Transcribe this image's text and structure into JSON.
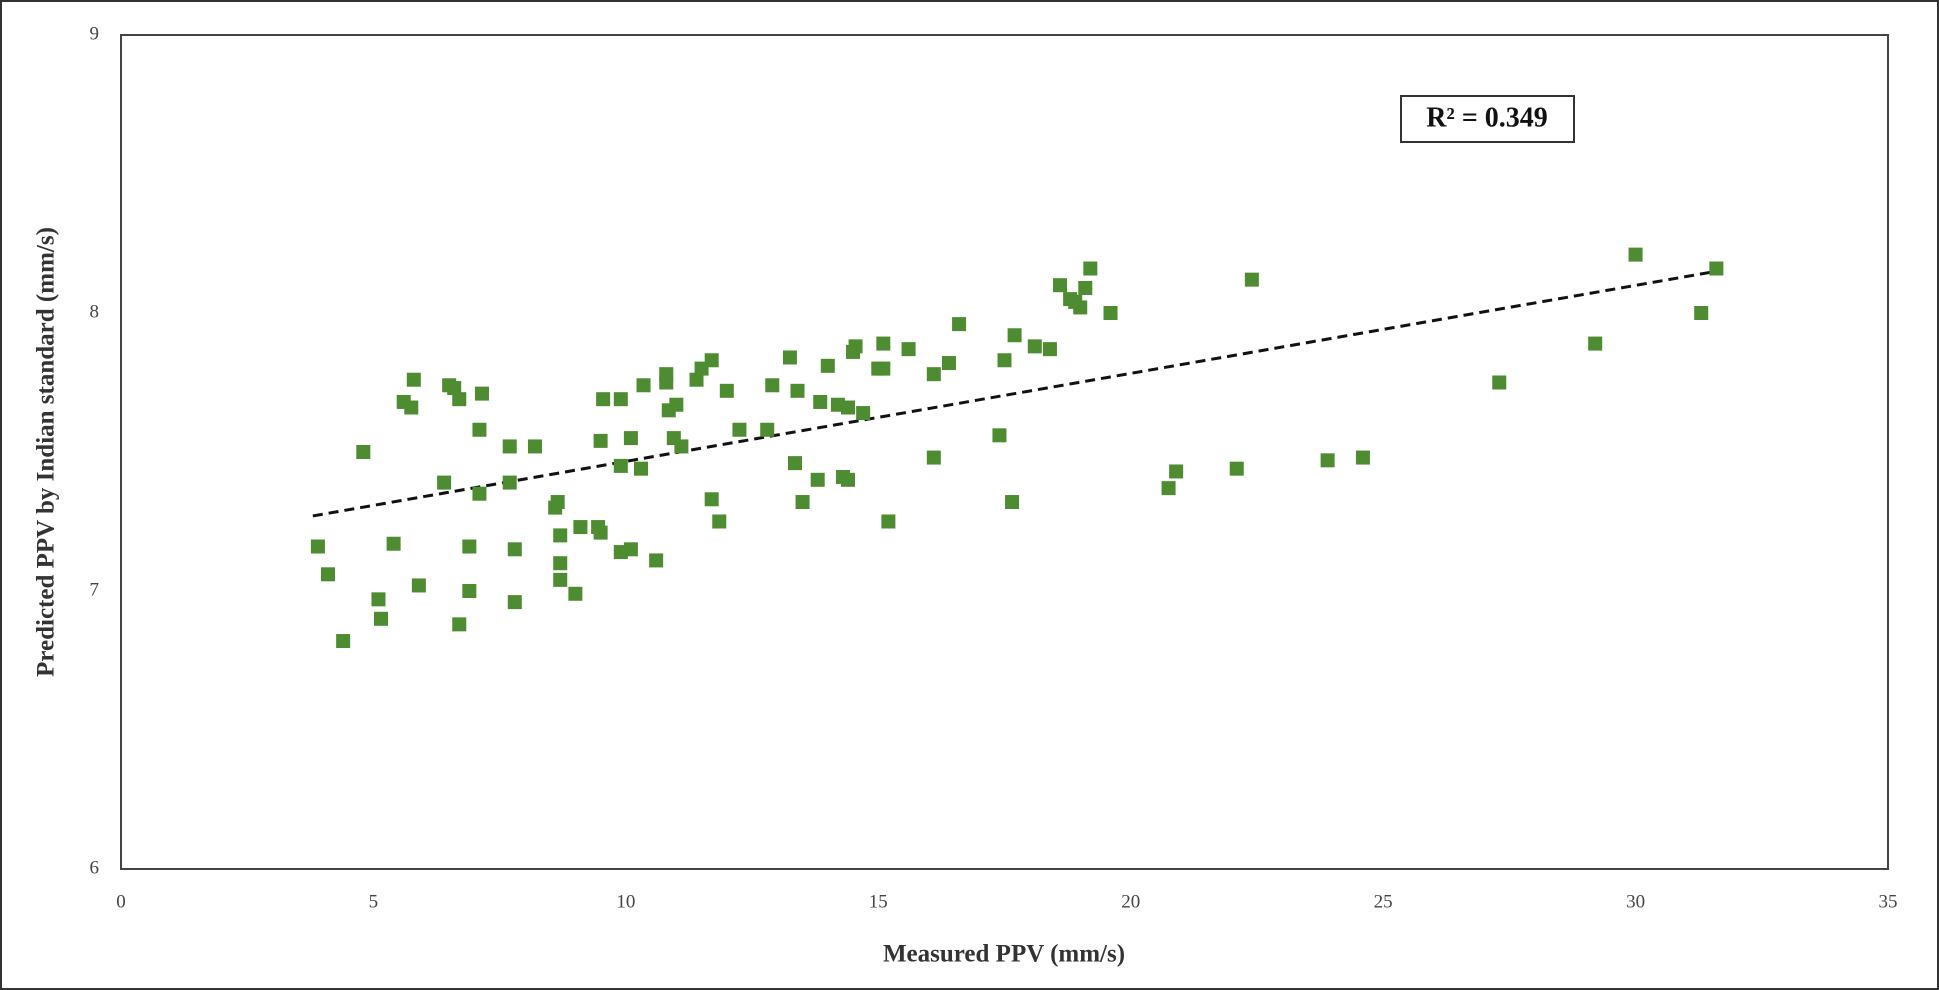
{
  "chart_data": {
    "type": "scatter",
    "x_label": "Measured PPV (mm/s)",
    "y_label": "Predicted PPV by Indian standard (mm/s)",
    "annotation": "R² = 0.349",
    "xlim": [
      0,
      35
    ],
    "xticks": [
      0,
      5,
      10,
      15,
      20,
      25,
      30,
      35
    ],
    "ylim": [
      6,
      9
    ],
    "yticks": [
      6,
      7,
      8,
      9
    ],
    "grid": false,
    "color": "#4e8c32",
    "x": [
      3.9,
      4.1,
      4.4,
      4.8,
      5.1,
      5.15,
      5.4,
      5.6,
      5.75,
      5.8,
      5.9,
      6.4,
      6.5,
      6.6,
      6.7,
      6.7,
      6.9,
      6.9,
      7.1,
      7.1,
      7.15,
      7.7,
      7.7,
      7.8,
      7.8,
      8.2,
      8.6,
      8.65,
      8.7,
      8.7,
      8.7,
      9.0,
      9.1,
      9.45,
      9.5,
      9.5,
      9.55,
      9.9,
      9.9,
      9.9,
      10.1,
      10.1,
      10.3,
      10.35,
      10.6,
      10.8,
      10.8,
      10.85,
      10.95,
      11.0,
      11.1,
      11.4,
      11.5,
      11.7,
      11.7,
      11.85,
      12.0,
      12.25,
      12.8,
      12.9,
      13.25,
      13.35,
      13.4,
      13.5,
      13.8,
      13.85,
      14.0,
      14.2,
      14.3,
      14.4,
      14.4,
      14.5,
      14.55,
      14.7,
      15.0,
      15.1,
      15.1,
      15.2,
      15.6,
      16.1,
      16.1,
      16.4,
      16.6,
      17.4,
      17.5,
      17.65,
      17.7,
      18.1,
      18.4,
      18.6,
      18.8,
      18.9,
      19.0,
      19.1,
      19.2,
      19.6,
      20.75,
      20.9,
      22.1,
      22.4,
      23.9,
      24.6,
      27.3,
      29.2,
      30.0,
      31.3,
      31.6
    ],
    "values": [
      7.16,
      7.06,
      6.82,
      7.5,
      6.97,
      6.9,
      7.17,
      7.68,
      7.66,
      7.76,
      7.02,
      7.39,
      7.74,
      7.73,
      7.69,
      6.88,
      7.16,
      7.0,
      7.35,
      7.58,
      7.71,
      7.52,
      7.39,
      7.15,
      6.96,
      7.52,
      7.3,
      7.32,
      7.04,
      7.2,
      7.1,
      6.99,
      7.23,
      7.23,
      7.54,
      7.21,
      7.69,
      7.69,
      7.45,
      7.14,
      7.15,
      7.55,
      7.44,
      7.74,
      7.11,
      7.75,
      7.78,
      7.65,
      7.55,
      7.67,
      7.52,
      7.76,
      7.8,
      7.83,
      7.33,
      7.25,
      7.72,
      7.58,
      7.58,
      7.74,
      7.84,
      7.46,
      7.72,
      7.32,
      7.4,
      7.68,
      7.81,
      7.67,
      7.41,
      7.4,
      7.66,
      7.86,
      7.88,
      7.64,
      7.8,
      7.8,
      7.89,
      7.25,
      7.87,
      7.78,
      7.48,
      7.82,
      7.96,
      7.56,
      7.83,
      7.32,
      7.92,
      7.88,
      7.87,
      8.1,
      8.05,
      8.04,
      8.02,
      8.09,
      8.16,
      8.0,
      7.37,
      7.43,
      7.44,
      8.12,
      7.47,
      7.48,
      7.75,
      7.89,
      8.21,
      8.0,
      8.16
    ],
    "trendline": {
      "x": [
        3.8,
        31.6
      ],
      "y": [
        7.27,
        8.15
      ]
    }
  }
}
